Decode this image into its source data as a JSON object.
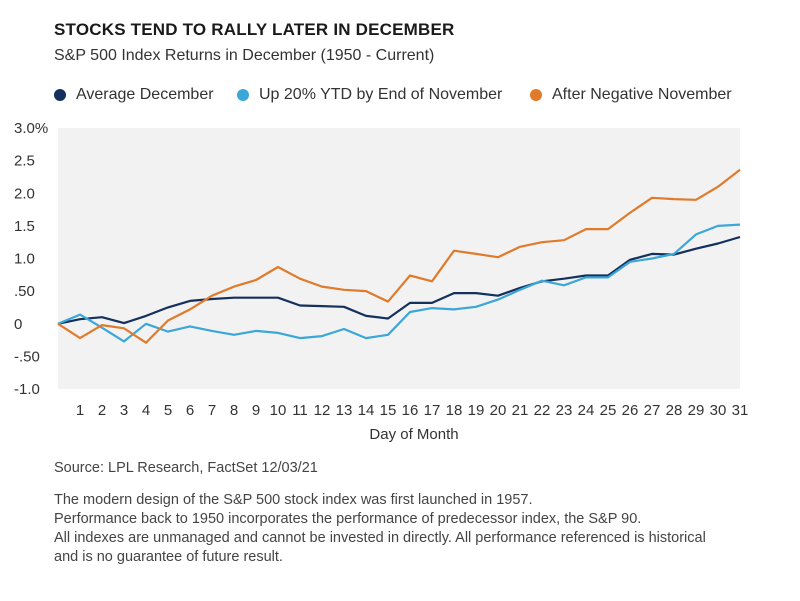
{
  "chart_data": {
    "type": "line",
    "title": "STOCKS TEND TO RALLY LATER IN DECEMBER",
    "subtitle": "S&P 500 Index Returns in December (1950 - Current)",
    "xlabel": "Day of Month",
    "ylabel": "",
    "x": [
      0,
      1,
      2,
      3,
      4,
      5,
      6,
      7,
      8,
      9,
      10,
      11,
      12,
      13,
      14,
      15,
      16,
      17,
      18,
      19,
      20,
      21,
      22,
      23,
      24,
      25,
      26,
      27,
      28,
      29,
      30,
      31
    ],
    "x_tick_labels": [
      "1",
      "2",
      "3",
      "4",
      "5",
      "6",
      "7",
      "8",
      "9",
      "10",
      "11",
      "12",
      "13",
      "14",
      "15",
      "16",
      "17",
      "18",
      "19",
      "20",
      "21",
      "22",
      "23",
      "24",
      "25",
      "26",
      "27",
      "28",
      "29",
      "30",
      "31"
    ],
    "ylim": [
      -1.0,
      3.0
    ],
    "y_ticks": [
      -1.0,
      -0.5,
      0,
      0.5,
      1.0,
      1.5,
      2.0,
      2.5,
      3.0
    ],
    "y_tick_labels": [
      "-1.0",
      "-.50",
      "0",
      ".50",
      "1.0",
      "1.5",
      "2.0",
      "2.5",
      "3.0%"
    ],
    "grid": false,
    "legend_position": "top",
    "series": [
      {
        "name": "Average December",
        "color": "#14305c",
        "values": [
          0,
          0.07,
          0.1,
          0.01,
          0.12,
          0.25,
          0.35,
          0.38,
          0.4,
          0.4,
          0.4,
          0.28,
          0.27,
          0.26,
          0.12,
          0.08,
          0.32,
          0.32,
          0.47,
          0.47,
          0.43,
          0.55,
          0.65,
          0.69,
          0.74,
          0.74,
          0.98,
          1.07,
          1.06,
          1.15,
          1.23,
          1.33
        ]
      },
      {
        "name": "Up 20% YTD by End of November",
        "color": "#3ba6d8",
        "values": [
          0,
          0.14,
          -0.06,
          -0.27,
          0,
          -0.12,
          -0.04,
          -0.11,
          -0.17,
          -0.11,
          -0.14,
          -0.22,
          -0.19,
          -0.08,
          -0.22,
          -0.17,
          0.18,
          0.24,
          0.22,
          0.26,
          0.37,
          0.52,
          0.66,
          0.59,
          0.71,
          0.71,
          0.95,
          1.0,
          1.07,
          1.37,
          1.5,
          1.52
        ]
      },
      {
        "name": "After Negative November",
        "color": "#e07b2b",
        "values": [
          0,
          -0.22,
          -0.02,
          -0.07,
          -0.29,
          0.05,
          0.22,
          0.43,
          0.57,
          0.67,
          0.87,
          0.69,
          0.57,
          0.52,
          0.5,
          0.34,
          0.74,
          0.65,
          1.12,
          1.07,
          1.02,
          1.18,
          1.25,
          1.28,
          1.45,
          1.45,
          1.7,
          1.93,
          1.91,
          1.9,
          2.1,
          2.36
        ]
      }
    ]
  },
  "footer": {
    "source": "Source: LPL Research, FactSet  12/03/21",
    "notes": [
      "The modern design of the S&P 500 stock index was first launched in 1957.",
      "Performance back to 1950 incorporates the performance of predecessor index, the S&P 90.",
      "All indexes are unmanaged and cannot be invested in directly. All performance referenced is historical",
      "and is no guarantee of future result."
    ]
  },
  "colors": {
    "plot_background": "#f2f2f2",
    "axis_text": "#333333"
  }
}
